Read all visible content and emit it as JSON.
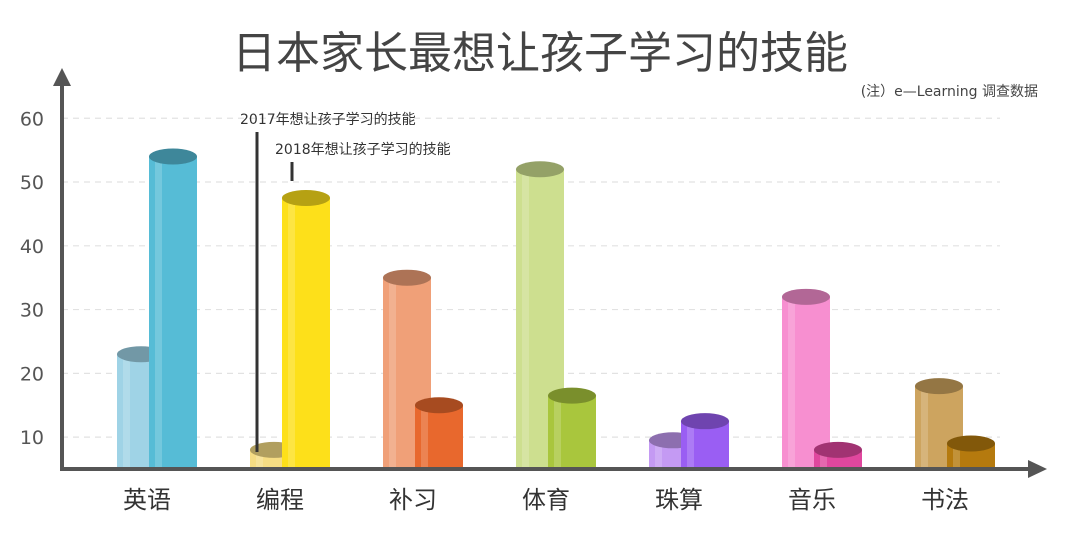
{
  "chart_data": {
    "type": "bar",
    "title": "日本家长最想让孩子学习的技能",
    "note": "(注）e—Learning 调查数据",
    "categories": [
      "英语",
      "编程",
      "补习",
      "体育",
      "珠算",
      "音乐",
      "书法"
    ],
    "series": [
      {
        "name": "2017年想让孩子学习的技能",
        "values": [
          23,
          8,
          35,
          52,
          9.5,
          32,
          18
        ]
      },
      {
        "name": "2018年想让孩子学习的技能",
        "values": [
          54,
          47.5,
          15,
          16.5,
          12.5,
          8,
          9
        ]
      }
    ],
    "y_ticks": [
      10,
      20,
      30,
      40,
      50,
      60
    ],
    "ylim": [
      5,
      66
    ],
    "grid": true,
    "colors": {
      "s2017": [
        "#9fd3e6",
        "#f6dd84",
        "#f0a078",
        "#cddf8f",
        "#c49af3",
        "#f78fd0",
        "#cda45f"
      ],
      "s2018": [
        "#56bcd6",
        "#fde01a",
        "#e8682d",
        "#a9c63d",
        "#9a5ef3",
        "#e0479e",
        "#b57a0e"
      ]
    }
  }
}
